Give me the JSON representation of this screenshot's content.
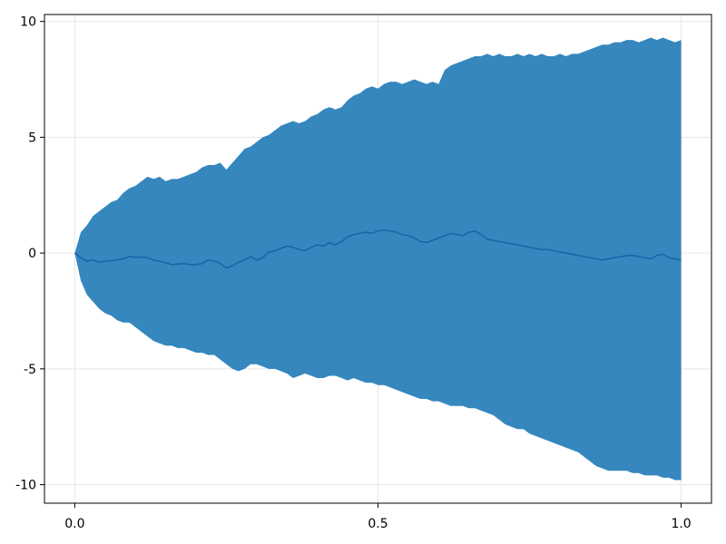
{
  "chart_data": {
    "type": "area",
    "title": "",
    "xlabel": "",
    "ylabel": "",
    "xlim": [
      -0.05,
      1.05
    ],
    "ylim": [
      -10.8,
      10.3
    ],
    "grid": true,
    "x_ticks": [
      0.0,
      0.5,
      1.0
    ],
    "x_tick_labels": [
      "0.0",
      "0.5",
      "1.0"
    ],
    "y_ticks": [
      -10,
      -5,
      0,
      5,
      10
    ],
    "y_tick_labels": [
      "-10",
      "-5",
      "0",
      "5",
      "10"
    ],
    "colors": {
      "band_fill": "#1f7ab7",
      "band_opacity": 0.9,
      "line": "#1565a8"
    },
    "x": [
      0.0,
      0.01,
      0.02,
      0.03,
      0.04,
      0.05,
      0.06,
      0.07,
      0.08,
      0.09,
      0.1,
      0.11,
      0.12,
      0.13,
      0.14,
      0.15,
      0.16,
      0.17,
      0.18,
      0.19,
      0.2,
      0.21,
      0.22,
      0.23,
      0.24,
      0.25,
      0.26,
      0.27,
      0.28,
      0.29,
      0.3,
      0.31,
      0.32,
      0.33,
      0.34,
      0.35,
      0.36,
      0.37,
      0.38,
      0.39,
      0.4,
      0.41,
      0.42,
      0.43,
      0.44,
      0.45,
      0.46,
      0.47,
      0.48,
      0.49,
      0.5,
      0.51,
      0.52,
      0.53,
      0.54,
      0.55,
      0.56,
      0.57,
      0.58,
      0.59,
      0.6,
      0.61,
      0.62,
      0.63,
      0.64,
      0.65,
      0.66,
      0.67,
      0.68,
      0.69,
      0.7,
      0.71,
      0.72,
      0.73,
      0.74,
      0.75,
      0.76,
      0.77,
      0.78,
      0.79,
      0.8,
      0.81,
      0.82,
      0.83,
      0.84,
      0.85,
      0.86,
      0.87,
      0.88,
      0.89,
      0.9,
      0.91,
      0.92,
      0.93,
      0.94,
      0.95,
      0.96,
      0.97,
      0.98,
      0.99,
      1.0
    ],
    "series": [
      {
        "type": "line",
        "values": [
          0.0,
          -0.2,
          -0.35,
          -0.3,
          -0.4,
          -0.35,
          -0.33,
          -0.3,
          -0.25,
          -0.15,
          -0.18,
          -0.17,
          -0.2,
          -0.3,
          -0.35,
          -0.42,
          -0.5,
          -0.47,
          -0.45,
          -0.5,
          -0.5,
          -0.45,
          -0.3,
          -0.35,
          -0.45,
          -0.65,
          -0.55,
          -0.4,
          -0.3,
          -0.15,
          -0.3,
          -0.2,
          0.05,
          0.1,
          0.2,
          0.3,
          0.25,
          0.15,
          0.1,
          0.25,
          0.35,
          0.3,
          0.45,
          0.35,
          0.5,
          0.7,
          0.8,
          0.85,
          0.9,
          0.85,
          0.95,
          1.0,
          0.95,
          0.9,
          0.8,
          0.75,
          0.65,
          0.5,
          0.45,
          0.55,
          0.65,
          0.75,
          0.85,
          0.8,
          0.75,
          0.9,
          0.95,
          0.8,
          0.6,
          0.55,
          0.5,
          0.45,
          0.4,
          0.35,
          0.3,
          0.25,
          0.2,
          0.15,
          0.15,
          0.1,
          0.05,
          0.0,
          -0.05,
          -0.1,
          -0.15,
          -0.2,
          -0.25,
          -0.3,
          -0.25,
          -0.2,
          -0.15,
          -0.12,
          -0.1,
          -0.15,
          -0.2,
          -0.25,
          -0.1,
          -0.05,
          -0.2,
          -0.25,
          -0.3
        ]
      },
      {
        "type": "band_upper",
        "values": [
          0.0,
          0.9,
          1.2,
          1.6,
          1.8,
          2.0,
          2.2,
          2.3,
          2.6,
          2.8,
          2.9,
          3.1,
          3.3,
          3.2,
          3.3,
          3.1,
          3.2,
          3.2,
          3.3,
          3.4,
          3.5,
          3.7,
          3.8,
          3.8,
          3.9,
          3.6,
          3.9,
          4.2,
          4.5,
          4.6,
          4.8,
          5.0,
          5.1,
          5.3,
          5.5,
          5.6,
          5.7,
          5.6,
          5.7,
          5.9,
          6.0,
          6.2,
          6.3,
          6.2,
          6.3,
          6.6,
          6.8,
          6.9,
          7.1,
          7.2,
          7.1,
          7.3,
          7.4,
          7.4,
          7.3,
          7.4,
          7.5,
          7.4,
          7.3,
          7.4,
          7.3,
          7.9,
          8.1,
          8.2,
          8.3,
          8.4,
          8.5,
          8.5,
          8.6,
          8.5,
          8.6,
          8.5,
          8.5,
          8.6,
          8.5,
          8.6,
          8.5,
          8.6,
          8.5,
          8.5,
          8.6,
          8.5,
          8.6,
          8.6,
          8.7,
          8.8,
          8.9,
          9.0,
          9.0,
          9.1,
          9.1,
          9.2,
          9.2,
          9.1,
          9.2,
          9.3,
          9.2,
          9.3,
          9.2,
          9.1,
          9.2
        ]
      },
      {
        "type": "band_lower",
        "values": [
          0.0,
          -1.2,
          -1.8,
          -2.1,
          -2.4,
          -2.6,
          -2.7,
          -2.9,
          -3.0,
          -3.0,
          -3.2,
          -3.4,
          -3.6,
          -3.8,
          -3.9,
          -4.0,
          -4.0,
          -4.1,
          -4.1,
          -4.2,
          -4.3,
          -4.3,
          -4.4,
          -4.4,
          -4.6,
          -4.8,
          -5.0,
          -5.1,
          -5.0,
          -4.8,
          -4.8,
          -4.9,
          -5.0,
          -5.0,
          -5.1,
          -5.2,
          -5.4,
          -5.3,
          -5.2,
          -5.3,
          -5.4,
          -5.4,
          -5.3,
          -5.3,
          -5.4,
          -5.5,
          -5.4,
          -5.5,
          -5.6,
          -5.6,
          -5.7,
          -5.7,
          -5.8,
          -5.9,
          -6.0,
          -6.1,
          -6.2,
          -6.3,
          -6.3,
          -6.4,
          -6.4,
          -6.5,
          -6.6,
          -6.6,
          -6.6,
          -6.7,
          -6.7,
          -6.8,
          -6.9,
          -7.0,
          -7.2,
          -7.4,
          -7.5,
          -7.6,
          -7.6,
          -7.8,
          -7.9,
          -8.0,
          -8.1,
          -8.2,
          -8.3,
          -8.4,
          -8.5,
          -8.6,
          -8.8,
          -9.0,
          -9.2,
          -9.3,
          -9.4,
          -9.4,
          -9.4,
          -9.4,
          -9.5,
          -9.5,
          -9.6,
          -9.6,
          -9.6,
          -9.7,
          -9.7,
          -9.8,
          -9.8
        ]
      }
    ]
  }
}
